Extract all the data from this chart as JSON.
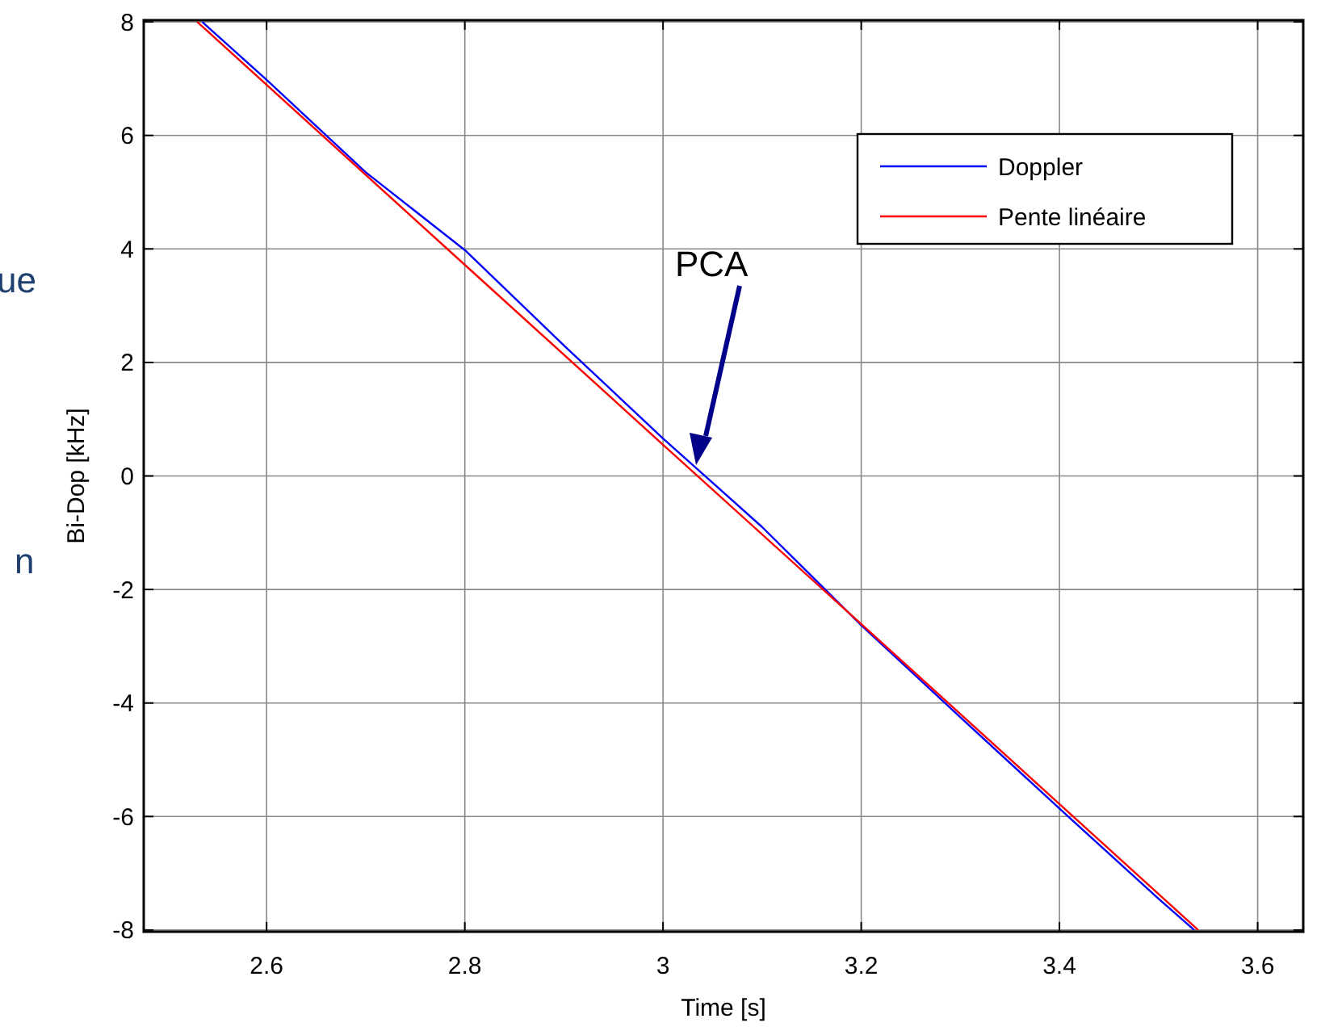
{
  "chart_data": {
    "type": "line",
    "xlabel": "Time [s]",
    "ylabel": "Bi-Dop [kHz]",
    "xlim": [
      2.476,
      3.646
    ],
    "xticks": [
      2.6,
      2.8,
      3,
      3.2,
      3.4,
      3.6
    ],
    "ylim": [
      -8.03,
      8.03
    ],
    "yticks": [
      -8,
      -6,
      -4,
      -2,
      0,
      2,
      4,
      6,
      8
    ],
    "grid": true,
    "legend": "top right",
    "marker": "none",
    "line_style": "solid",
    "series": [
      {
        "name": "Doppler",
        "color": "#0000ff",
        "x": [
          2.535,
          2.6,
          2.7,
          2.8,
          2.9,
          3.0,
          3.05,
          3.1,
          3.2,
          3.3,
          3.4,
          3.5,
          3.536
        ],
        "values": [
          8,
          6.98,
          5.35,
          3.98,
          2.3,
          0.66,
          -0.12,
          -0.9,
          -2.63,
          -4.25,
          -5.86,
          -7.45,
          -8
        ]
      },
      {
        "name": "Pente linéaire",
        "color": "#ff0000",
        "x": [
          2.53,
          2.8,
          3.0,
          3.2,
          3.4,
          3.54
        ],
        "values": [
          8,
          3.72,
          0.55,
          -2.61,
          -5.78,
          -8
        ]
      }
    ],
    "annotations": [
      "PCA",
      "ue",
      "n"
    ]
  }
}
